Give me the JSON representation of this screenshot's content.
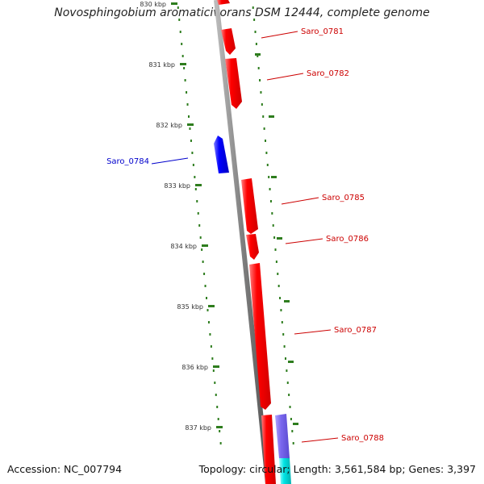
{
  "title": "Novosphingobium aromaticivorans DSM 12444, complete genome",
  "accession": "Accession: NC_007794",
  "topology": "Topology: circular; Length: 3,561,584 bp; Genes: 3,397",
  "colors": {
    "forward_gene": "#ff0000",
    "reverse_gene": "#0000ff",
    "other_feature": "#7b68ee",
    "cyan_feature": "#00e5e5",
    "backbone": "#808080",
    "tick": "#2e7d1e",
    "forward_label": "#cc0000",
    "reverse_label": "#0000cc"
  },
  "kbp_ticks": [
    "830 kbp",
    "831 kbp",
    "832 kbp",
    "833 kbp",
    "834 kbp",
    "835 kbp",
    "836 kbp",
    "837 kbp"
  ],
  "genes": [
    {
      "label": "Saro_0781",
      "strand": "forward"
    },
    {
      "label": "Saro_0782",
      "strand": "forward"
    },
    {
      "label": "Saro_0784",
      "strand": "reverse"
    },
    {
      "label": "Saro_0785",
      "strand": "forward"
    },
    {
      "label": "Saro_0786",
      "strand": "forward"
    },
    {
      "label": "Saro_0787",
      "strand": "forward"
    },
    {
      "label": "Saro_0788",
      "strand": "forward"
    }
  ]
}
